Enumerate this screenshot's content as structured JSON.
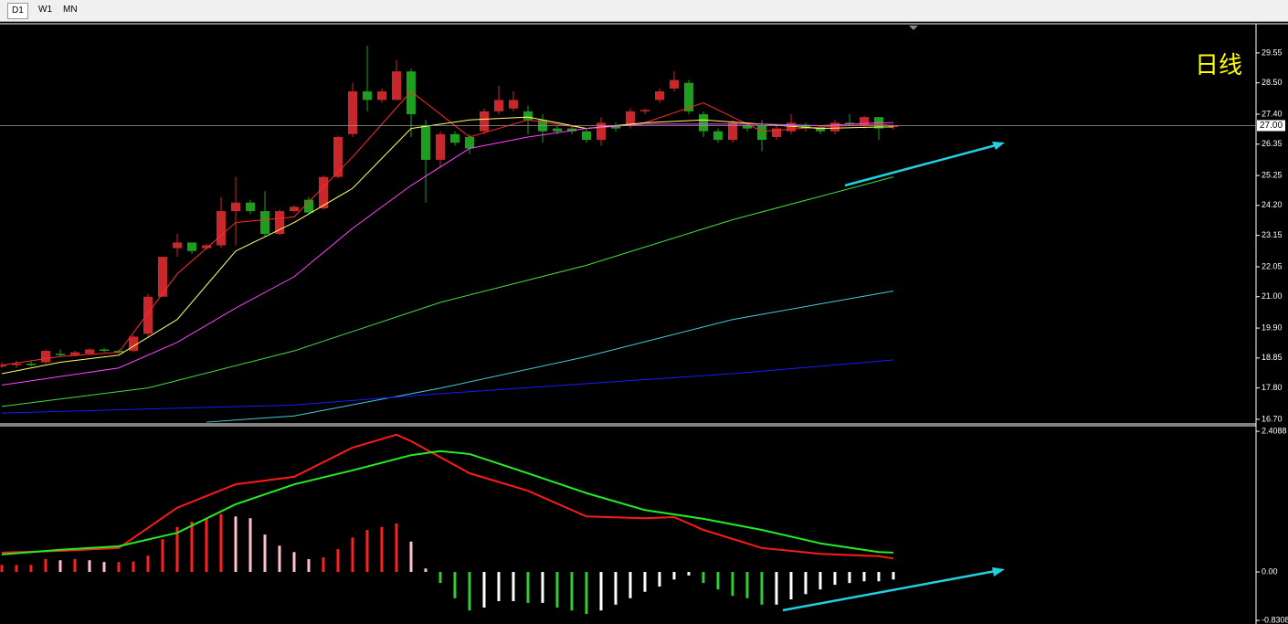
{
  "toolbar": {
    "tabs": [
      "D1",
      "W1",
      "MN"
    ]
  },
  "chart_data": [
    {
      "type": "candlestick",
      "annotation": "日线",
      "last_price": {
        "value": 27,
        "label": "27.00"
      },
      "up_color": "#c8282c",
      "down_color": "#1e9e1e",
      "open": [
        18.55,
        18.6,
        18.65,
        18.7,
        19.0,
        18.95,
        19.0,
        19.15,
        19.1,
        19.1,
        19.7,
        21.0,
        22.7,
        22.9,
        22.7,
        22.8,
        24.0,
        24.3,
        24.0,
        23.2,
        24.0,
        24.4,
        24.1,
        25.2,
        26.7,
        28.2,
        27.9,
        27.9,
        28.9,
        27.0,
        25.8,
        26.7,
        26.6,
        26.8,
        27.5,
        27.6,
        27.5,
        27.2,
        26.9,
        26.9,
        26.8,
        26.5,
        27.0,
        27.0,
        27.5,
        27.9,
        28.3,
        28.5,
        27.4,
        26.8,
        26.5,
        27.0,
        27.0,
        26.6,
        26.8,
        27.0,
        26.95,
        26.8,
        27.1,
        27.0,
        27.3,
        26.95
      ],
      "high": [
        18.7,
        18.75,
        18.75,
        19.15,
        19.15,
        19.1,
        19.2,
        19.2,
        19.15,
        19.65,
        21.1,
        22.4,
        23.2,
        22.9,
        22.85,
        24.5,
        25.2,
        24.4,
        24.7,
        24.05,
        24.2,
        24.5,
        25.25,
        26.65,
        28.5,
        29.8,
        28.3,
        29.3,
        29.0,
        27.2,
        26.8,
        26.8,
        26.7,
        27.6,
        28.4,
        28.2,
        27.7,
        27.4,
        27.0,
        27.0,
        26.9,
        27.3,
        27.1,
        27.6,
        27.6,
        28.3,
        28.9,
        28.6,
        27.5,
        26.9,
        27.2,
        27.1,
        27.2,
        27.0,
        27.4,
        27.1,
        27.0,
        27.2,
        27.4,
        27.35,
        27.3,
        27.05
      ],
      "low": [
        18.5,
        18.5,
        18.55,
        18.65,
        18.9,
        18.9,
        18.95,
        19.05,
        19.0,
        19.05,
        19.6,
        21.0,
        22.4,
        22.5,
        22.65,
        22.7,
        22.8,
        23.9,
        23.1,
        23.15,
        23.95,
        23.9,
        24.05,
        25.15,
        26.6,
        27.5,
        27.8,
        27.9,
        26.6,
        24.3,
        25.5,
        26.3,
        26.0,
        26.7,
        27.4,
        27.5,
        26.7,
        26.4,
        26.7,
        26.7,
        26.4,
        26.3,
        26.8,
        26.9,
        27.4,
        27.8,
        28.2,
        27.4,
        26.6,
        26.4,
        26.4,
        26.8,
        26.1,
        26.5,
        26.7,
        26.8,
        26.7,
        26.7,
        27.0,
        26.9,
        26.5,
        26.85
      ],
      "close": [
        18.6,
        18.65,
        18.6,
        19.1,
        18.95,
        19.05,
        19.15,
        19.1,
        19.05,
        19.6,
        21.0,
        22.4,
        22.9,
        22.6,
        22.8,
        24.0,
        24.3,
        24.0,
        23.2,
        24.0,
        24.15,
        23.95,
        25.2,
        26.6,
        28.2,
        27.9,
        28.2,
        28.9,
        27.4,
        25.8,
        26.7,
        26.4,
        26.2,
        27.5,
        27.9,
        27.9,
        27.2,
        26.8,
        26.8,
        26.8,
        26.5,
        27.1,
        26.9,
        27.5,
        27.55,
        28.2,
        28.6,
        27.5,
        26.8,
        26.5,
        27.1,
        26.9,
        26.5,
        26.9,
        27.1,
        26.9,
        26.8,
        27.1,
        27.05,
        27.3,
        26.9,
        27.0
      ],
      "series": [
        {
          "color": "#ff2a2a",
          "x": [
            0,
            4,
            8,
            12,
            16,
            20,
            24,
            28,
            32,
            36,
            40,
            44,
            48,
            52,
            56,
            60,
            61
          ],
          "values": [
            18.6,
            18.9,
            19.05,
            21.8,
            23.6,
            23.8,
            25.9,
            28.2,
            26.6,
            27.2,
            26.9,
            27.1,
            27.8,
            26.8,
            26.95,
            27.05,
            27.0
          ]
        },
        {
          "color": "#ffff66",
          "x": [
            0,
            4,
            8,
            12,
            16,
            20,
            24,
            28,
            32,
            36,
            40,
            44,
            48,
            52,
            56,
            60,
            61
          ],
          "values": [
            18.3,
            18.7,
            18.95,
            20.2,
            22.6,
            23.6,
            24.8,
            26.9,
            27.2,
            27.3,
            26.9,
            27.1,
            27.2,
            27.05,
            26.9,
            26.95,
            26.95
          ]
        },
        {
          "color": "#ff44ff",
          "x": [
            0,
            4,
            8,
            12,
            16,
            20,
            24,
            28,
            32,
            36,
            40,
            44,
            48,
            52,
            56,
            60,
            61
          ],
          "values": [
            17.9,
            18.2,
            18.5,
            19.4,
            20.6,
            21.7,
            23.4,
            24.9,
            26.2,
            26.6,
            26.9,
            27.05,
            27.05,
            27.05,
            27.0,
            27.1,
            27.1
          ]
        },
        {
          "color": "#44dd44",
          "x": [
            0,
            10,
            20,
            30,
            40,
            50,
            61
          ],
          "values": [
            17.15,
            17.8,
            19.1,
            20.8,
            22.1,
            23.7,
            25.2
          ]
        },
        {
          "color": "#44ccdd",
          "x": [
            14,
            20,
            30,
            40,
            50,
            61
          ],
          "values": [
            16.6,
            16.82,
            17.79,
            18.9,
            20.2,
            21.2
          ]
        },
        {
          "color": "#1a1aff",
          "x": [
            0,
            20,
            30,
            40,
            50,
            61
          ],
          "values": [
            16.92,
            17.2,
            17.6,
            17.95,
            18.3,
            18.78
          ]
        }
      ],
      "ylim": [
        16.57,
        30.54
      ],
      "yticks": [
        {
          "value": 29.55,
          "label": "29.55"
        },
        {
          "value": 28.5,
          "label": "28.50"
        },
        {
          "value": 27.4,
          "label": "27.40"
        },
        {
          "value": 26.35,
          "label": "26.35"
        },
        {
          "value": 25.25,
          "label": "25.25"
        },
        {
          "value": 24.2,
          "label": "24.20"
        },
        {
          "value": 23.15,
          "label": "23.15"
        },
        {
          "value": 22.05,
          "label": "22.05"
        },
        {
          "value": 21,
          "label": "21.00"
        },
        {
          "value": 19.9,
          "label": "19.90"
        },
        {
          "value": 18.85,
          "label": "18.85"
        },
        {
          "value": 17.8,
          "label": "17.80"
        },
        {
          "value": 16.7,
          "label": "16.70"
        }
      ]
    },
    {
      "type": "macd",
      "bar_colors": {
        "pos_up": "#ff2020",
        "pos_down": "#ffc0c8",
        "neg_down": "#33cc33",
        "neg_up": "#ffffff"
      },
      "values": [
        0.12,
        0.12,
        0.12,
        0.22,
        0.2,
        0.22,
        0.2,
        0.17,
        0.17,
        0.18,
        0.28,
        0.56,
        0.77,
        0.86,
        0.91,
        0.99,
        0.95,
        0.92,
        0.64,
        0.45,
        0.34,
        0.22,
        0.25,
        0.39,
        0.59,
        0.72,
        0.77,
        0.83,
        0.52,
        0.06,
        -0.19,
        -0.45,
        -0.66,
        -0.61,
        -0.5,
        -0.5,
        -0.53,
        -0.53,
        -0.61,
        -0.66,
        -0.72,
        -0.66,
        -0.56,
        -0.45,
        -0.34,
        -0.25,
        -0.13,
        -0.06,
        -0.19,
        -0.3,
        -0.41,
        -0.45,
        -0.56,
        -0.56,
        -0.47,
        -0.38,
        -0.3,
        -0.22,
        -0.19,
        -0.16,
        -0.16,
        -0.13
      ],
      "series": [
        {
          "color": "#ff1a1a",
          "x": [
            0,
            4,
            8,
            12,
            16,
            20,
            24,
            27,
            28,
            32,
            36,
            40,
            44,
            46,
            48,
            52,
            56,
            60,
            61
          ],
          "values": [
            0.33,
            0.36,
            0.41,
            1.1,
            1.5,
            1.63,
            2.13,
            2.35,
            2.24,
            1.69,
            1.39,
            0.95,
            0.92,
            0.94,
            0.72,
            0.41,
            0.31,
            0.27,
            0.23
          ]
        },
        {
          "color": "#22ee22",
          "x": [
            0,
            4,
            8,
            12,
            16,
            20,
            24,
            28,
            30,
            32,
            36,
            40,
            44,
            48,
            52,
            56,
            60,
            61
          ],
          "values": [
            0.3,
            0.38,
            0.44,
            0.67,
            1.16,
            1.5,
            1.74,
            2.0,
            2.07,
            2.02,
            1.69,
            1.35,
            1.06,
            0.91,
            0.72,
            0.49,
            0.34,
            0.33
          ]
        }
      ],
      "ylim": [
        -0.876,
        2.504
      ],
      "yticks": [
        {
          "value": 2.4088,
          "label": "2.4088"
        },
        {
          "value": 0,
          "label": "0.00"
        },
        {
          "value": -0.8308,
          "label": "-0.8308"
        }
      ]
    }
  ]
}
